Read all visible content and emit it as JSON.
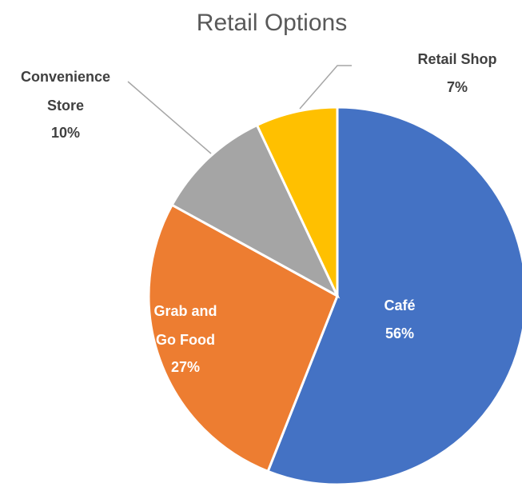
{
  "chart_data": {
    "type": "pie",
    "title": "Retail Options",
    "categories": [
      "Café",
      "Grab and Go Food",
      "Convenience Store",
      "Retail Shop"
    ],
    "values": [
      56,
      27,
      10,
      7
    ],
    "value_labels": [
      "56%",
      "27%",
      "10%",
      "7%"
    ],
    "colors": [
      "#4472c4",
      "#ed7d31",
      "#a5a5a5",
      "#ffc000"
    ]
  }
}
